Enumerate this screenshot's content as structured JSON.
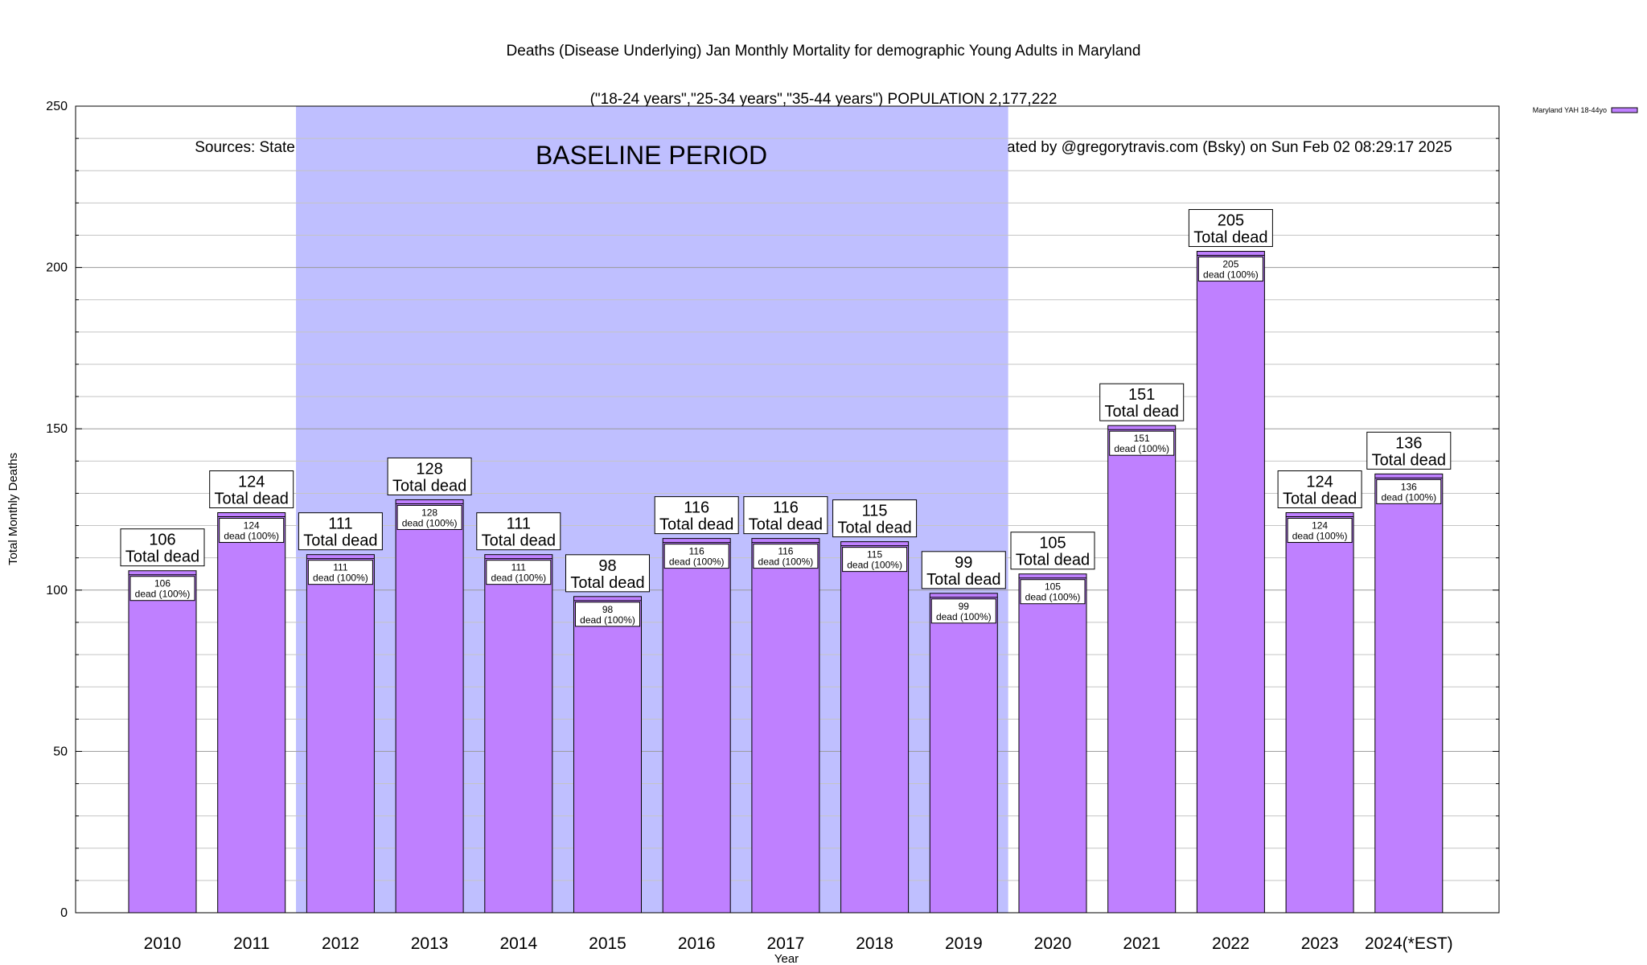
{
  "chart_data": {
    "type": "bar",
    "title_lines": [
      "Deaths (Disease Underlying) Jan Monthly Mortality for demographic Young Adults in Maryland",
      "(\"18-24 years\",\"25-34 years\",\"35-44 years\") POPULATION 2,177,222",
      "Sources: State Death Certificates via CDC WONDER. (Deaths for incomplete years are *ESTimated)                Chart created by @gregorytravis.com (Bsky) on Sun Feb 02 08:29:17 2025"
    ],
    "xlabel": "Year",
    "ylabel": "Total Monthly Deaths",
    "ylim": [
      0,
      250
    ],
    "yticks": [
      0,
      50,
      100,
      150,
      200,
      250
    ],
    "categories": [
      "2010",
      "2011",
      "2012",
      "2013",
      "2014",
      "2015",
      "2016",
      "2017",
      "2018",
      "2019",
      "2020",
      "2021",
      "2022",
      "2023",
      "2024(*EST)"
    ],
    "series": [
      {
        "name": "Maryland YAH 18-44yo",
        "color": "#bf80ff",
        "values": [
          106,
          124,
          111,
          128,
          111,
          98,
          116,
          116,
          115,
          99,
          105,
          151,
          205,
          124,
          136
        ]
      }
    ],
    "bar_inner_label_suffix": "dead (100%)",
    "bar_top_label_suffix": "Total dead",
    "baseline_period": {
      "label": "BASELINE PERIOD",
      "from_category": "2012",
      "to_category": "2019",
      "color": "#bfbfff"
    },
    "grid": true,
    "legend_position": "top-right"
  }
}
